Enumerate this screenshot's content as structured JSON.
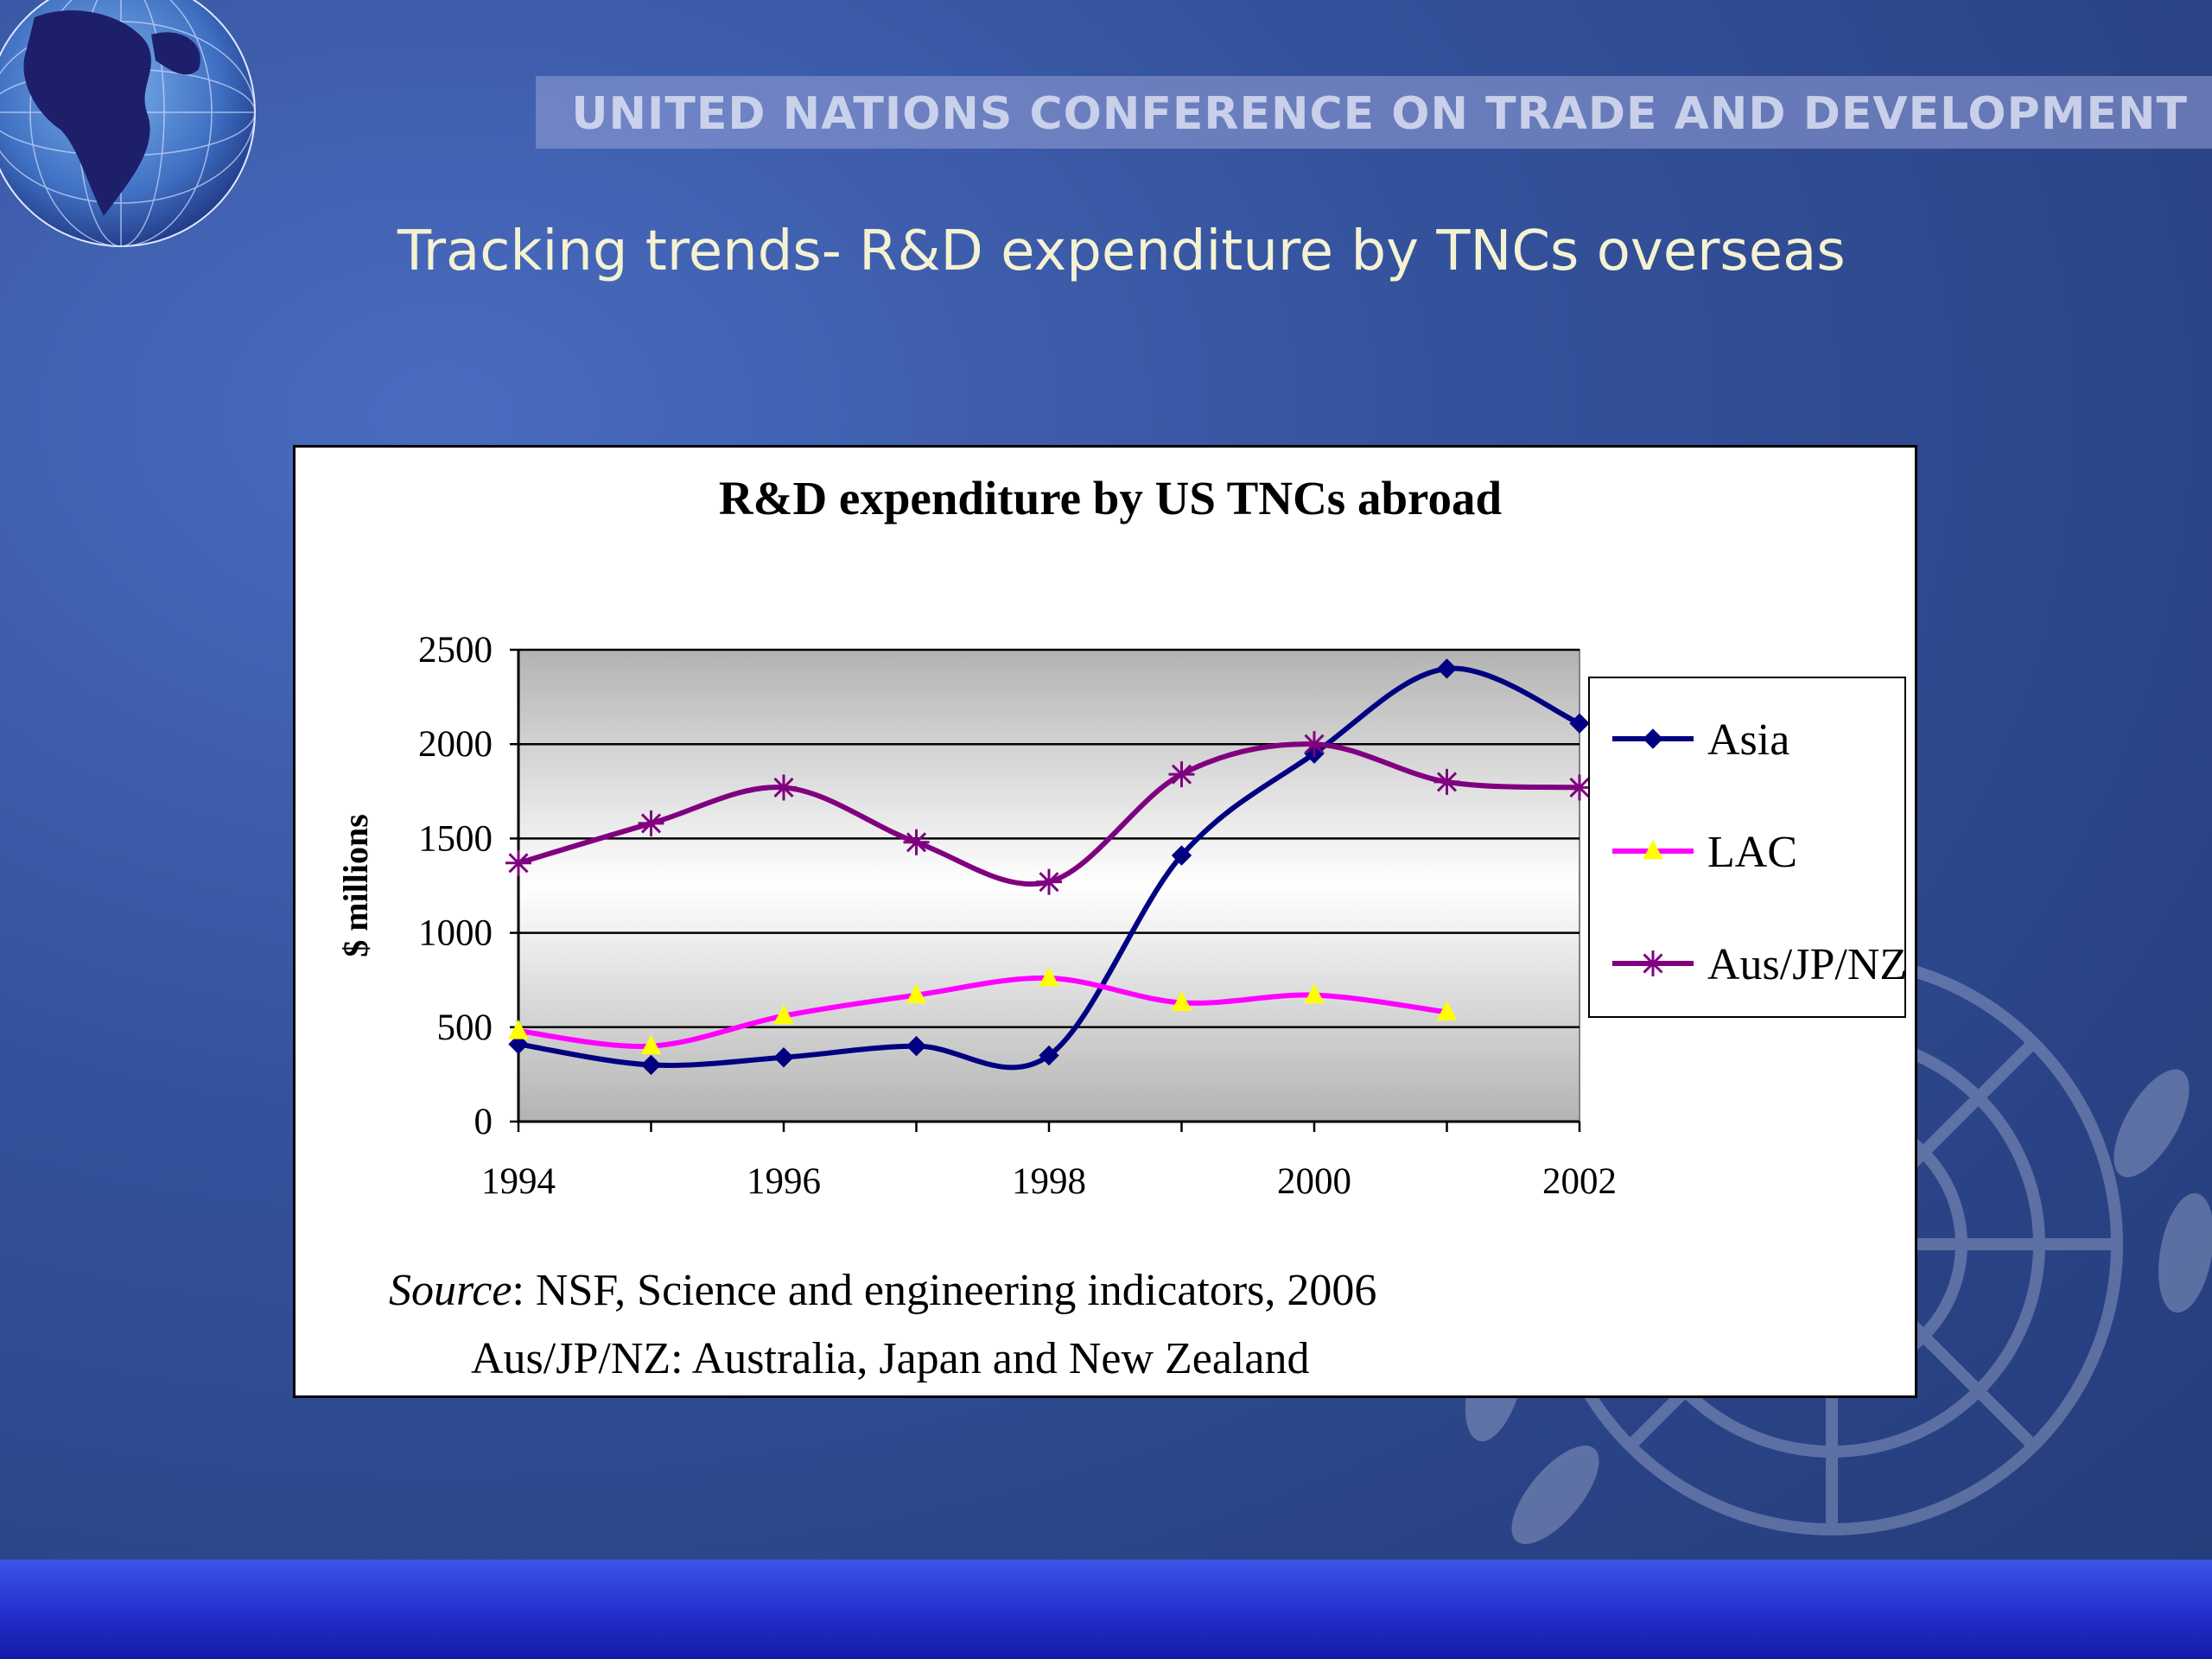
{
  "header": {
    "organization": "UNITED NATIONS CONFERENCE ON TRADE AND DEVELOPMENT"
  },
  "slide": {
    "title": "Tracking trends- R&D expenditure by TNCs overseas"
  },
  "chart_data": {
    "type": "line",
    "title": "R&D expenditure by US TNCs abroad",
    "xlabel": "",
    "ylabel": "$ millions",
    "x": [
      1994,
      1995,
      1996,
      1997,
      1998,
      1999,
      2000,
      2001,
      2002
    ],
    "xlim": [
      1994,
      2002
    ],
    "xticks": [
      "1994",
      "1996",
      "1998",
      "2000",
      "2002"
    ],
    "xtick_values": [
      1994,
      1996,
      1998,
      2000,
      2002
    ],
    "ylim": [
      0,
      2500
    ],
    "yticks": [
      "0",
      "500",
      "1000",
      "1500",
      "2000",
      "2500"
    ],
    "ytick_values": [
      0,
      500,
      1000,
      1500,
      2000,
      2500
    ],
    "grid": true,
    "smooth": true,
    "legend_position": "right",
    "series": [
      {
        "name": "Asia",
        "color": "#000080",
        "marker": "diamond",
        "values": [
          410,
          300,
          340,
          400,
          350,
          1410,
          1950,
          2400,
          2110
        ]
      },
      {
        "name": "LAC",
        "color": "#ff00ff",
        "marker": "triangle",
        "marker_color": "#ffff00",
        "values": [
          480,
          400,
          560,
          670,
          760,
          630,
          670,
          580,
          null
        ]
      },
      {
        "name": "Aus/JP/NZ",
        "color": "#800080",
        "marker": "asterisk",
        "values": [
          1370,
          1580,
          1770,
          1480,
          1270,
          1840,
          2000,
          1800,
          1770
        ]
      }
    ]
  },
  "notes": {
    "source_label": "Source",
    "source_text": ": NSF, Science and engineering indicators, 2006",
    "abbreviation": "Aus/JP/NZ: Australia, Japan and New Zealand"
  }
}
